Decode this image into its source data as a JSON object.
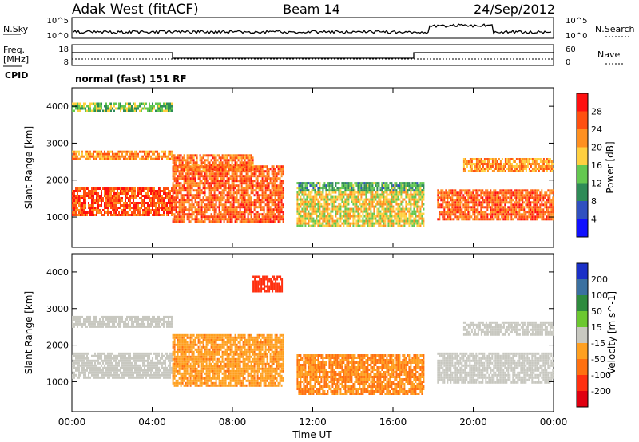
{
  "header": {
    "station": "Adak West (fitACF)",
    "beam": "Beam 14",
    "date": "24/Sep/2012"
  },
  "top_panels": {
    "nsky_label": "N.Sky",
    "nsky_ticks": [
      "10^5",
      "10^0"
    ],
    "nsearch_label": "N.Search",
    "nsearch_ticks": [
      "10^5",
      "10^0"
    ],
    "freq_label": "Freq.",
    "freq_unit": "[MHz]",
    "freq_ticks": [
      "18",
      "8"
    ],
    "nave_label": "Nave",
    "nave_ticks": [
      "60",
      "0"
    ],
    "cpid_label": "CPID",
    "cpid_value": "normal (fast) 151 RF"
  },
  "chart_data": [
    {
      "type": "heatmap",
      "panel": "power",
      "xlabel": "",
      "ylabel": "Slant Range [km]",
      "x_range_hours": [
        0,
        24
      ],
      "x_ticks": [
        "00:00",
        "04:00",
        "08:00",
        "12:00",
        "16:00",
        "20:00",
        "00:00"
      ],
      "y_range": [
        180,
        4500
      ],
      "y_ticks": [
        1000,
        2000,
        3000,
        4000
      ],
      "colorbar": {
        "label": "Power [dB]",
        "ticks": [
          "4",
          "8",
          "12",
          "16",
          "20",
          "24",
          "28"
        ],
        "colors": [
          "#1010ff",
          "#3050c0",
          "#2e8b57",
          "#64c850",
          "#ffd040",
          "#ff9020",
          "#ff5010",
          "#ff1010"
        ]
      },
      "echo_regions": [
        {
          "t0": 0.0,
          "t1": 5.0,
          "r0": 1050,
          "r1": 1800,
          "value": 26
        },
        {
          "t0": 0.0,
          "t1": 5.0,
          "r0": 2550,
          "r1": 2800,
          "value": 22
        },
        {
          "t0": 0.0,
          "t1": 5.0,
          "r0": 3850,
          "r1": 4100,
          "value": 14
        },
        {
          "t0": 5.0,
          "t1": 10.5,
          "r0": 900,
          "r1": 2400,
          "value": 25
        },
        {
          "t0": 5.0,
          "t1": 9.0,
          "r0": 2300,
          "r1": 2700,
          "value": 24
        },
        {
          "t0": 11.2,
          "t1": 17.5,
          "r0": 750,
          "r1": 1700,
          "value": 18
        },
        {
          "t0": 11.2,
          "t1": 17.5,
          "r0": 1700,
          "r1": 1950,
          "value": 12
        },
        {
          "t0": 18.2,
          "t1": 24.0,
          "r0": 950,
          "r1": 1750,
          "value": 25
        },
        {
          "t0": 19.5,
          "t1": 24.0,
          "r0": 2250,
          "r1": 2600,
          "value": 22
        }
      ]
    },
    {
      "type": "heatmap",
      "panel": "velocity",
      "xlabel": "Time UT",
      "ylabel": "Slant Range [km]",
      "x_range_hours": [
        0,
        24
      ],
      "x_ticks": [
        "00:00",
        "04:00",
        "08:00",
        "12:00",
        "16:00",
        "20:00",
        "00:00"
      ],
      "y_range": [
        180,
        4500
      ],
      "y_ticks": [
        1000,
        2000,
        3000,
        4000
      ],
      "colorbar": {
        "label": "Velocity [m s^-1]",
        "ticks": [
          "200",
          "100",
          "50",
          "15",
          "-15",
          "-50",
          "-100",
          "-200"
        ],
        "colors": [
          "#1a30c8",
          "#3a70a0",
          "#2e8b3e",
          "#6cc830",
          "#c8c8c0",
          "#ffa020",
          "#ff7010",
          "#ff3010",
          "#e00010"
        ]
      },
      "echo_regions": [
        {
          "t0": 0.0,
          "t1": 5.0,
          "r0": 1100,
          "r1": 1800,
          "value": 0
        },
        {
          "t0": 0.0,
          "t1": 5.0,
          "r0": 2500,
          "r1": 2800,
          "value": 0
        },
        {
          "t0": 5.0,
          "t1": 10.5,
          "r0": 900,
          "r1": 2300,
          "value": -40
        },
        {
          "t0": 9.0,
          "t1": 10.5,
          "r0": 3500,
          "r1": 3900,
          "value": -180
        },
        {
          "t0": 11.2,
          "t1": 17.5,
          "r0": 700,
          "r1": 1750,
          "value": -50
        },
        {
          "t0": 18.2,
          "t1": 24.0,
          "r0": 1000,
          "r1": 1800,
          "value": 0
        },
        {
          "t0": 19.5,
          "t1": 24.0,
          "r0": 2300,
          "r1": 2650,
          "value": 0
        }
      ]
    }
  ]
}
